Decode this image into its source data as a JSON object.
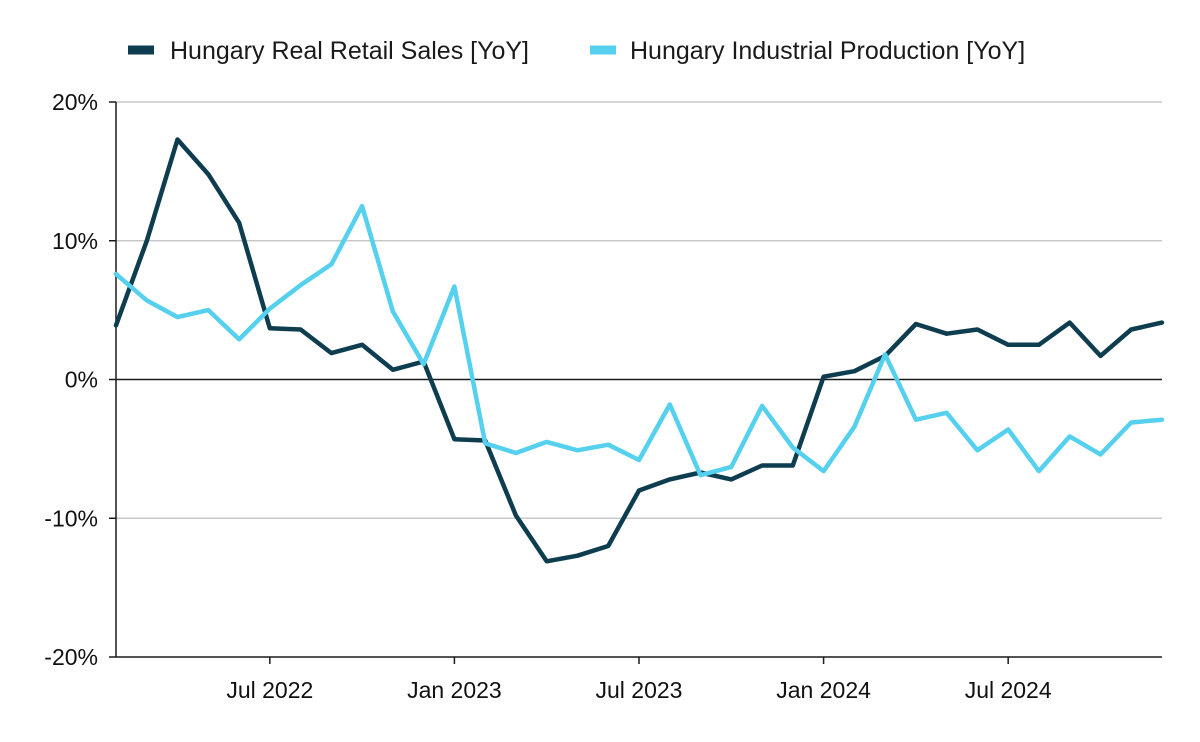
{
  "chart_data": {
    "type": "line",
    "title": "",
    "xlabel": "",
    "ylabel": "",
    "ylim": [
      -20,
      20
    ],
    "y_ticks": [
      "20%",
      "10%",
      "0%",
      "-10%",
      "-20%"
    ],
    "y_tick_values": [
      20,
      10,
      0,
      -10,
      -20
    ],
    "x_ticks": [
      {
        "label": "Jul 2022",
        "x": "2022-07"
      },
      {
        "label": "Jan 2023",
        "x": "2023-01"
      },
      {
        "label": "Jul 2023",
        "x": "2023-07"
      },
      {
        "label": "Jan 2024",
        "x": "2024-01"
      },
      {
        "label": "Jul 2024",
        "x": "2024-07"
      }
    ],
    "x": [
      "2022-02",
      "2022-03",
      "2022-04",
      "2022-05",
      "2022-06",
      "2022-07",
      "2022-08",
      "2022-09",
      "2022-10",
      "2022-11",
      "2022-12",
      "2023-01",
      "2023-02",
      "2023-03",
      "2023-04",
      "2023-05",
      "2023-06",
      "2023-07",
      "2023-08",
      "2023-09",
      "2023-10",
      "2023-11",
      "2023-12",
      "2024-01",
      "2024-02",
      "2024-03",
      "2024-04",
      "2024-05",
      "2024-06",
      "2024-07",
      "2024-08",
      "2024-09",
      "2024-10",
      "2024-11",
      "2024-12"
    ],
    "grid": true,
    "legend_position": "top",
    "series": [
      {
        "name": "Hungary Real Retail Sales [YoY]",
        "color": "#0d3d4f",
        "values": [
          3.9,
          10.0,
          17.3,
          14.8,
          11.3,
          3.7,
          3.6,
          1.9,
          2.5,
          0.7,
          1.3,
          -4.3,
          -4.4,
          -9.8,
          -13.1,
          -12.7,
          -12.0,
          -8.0,
          -7.2,
          -6.7,
          -7.2,
          -6.2,
          -6.2,
          0.2,
          0.6,
          1.7,
          4.0,
          3.3,
          3.6,
          2.5,
          2.5,
          4.1,
          1.7,
          3.6,
          4.1
        ]
      },
      {
        "name": "Hungary Industrial Production [YoY]",
        "color": "#55d0ee",
        "values": [
          7.6,
          5.7,
          4.5,
          5.0,
          2.9,
          5.1,
          6.8,
          8.3,
          12.5,
          4.9,
          1.1,
          6.7,
          -4.6,
          -5.3,
          -4.5,
          -5.1,
          -4.7,
          -5.8,
          -1.8,
          -6.9,
          -6.3,
          -1.9,
          -4.9,
          -6.6,
          -3.4,
          1.8,
          -2.9,
          -2.4,
          -5.1,
          -3.6,
          -6.6,
          -4.1,
          -5.4,
          -3.1,
          -2.9
        ]
      }
    ]
  }
}
